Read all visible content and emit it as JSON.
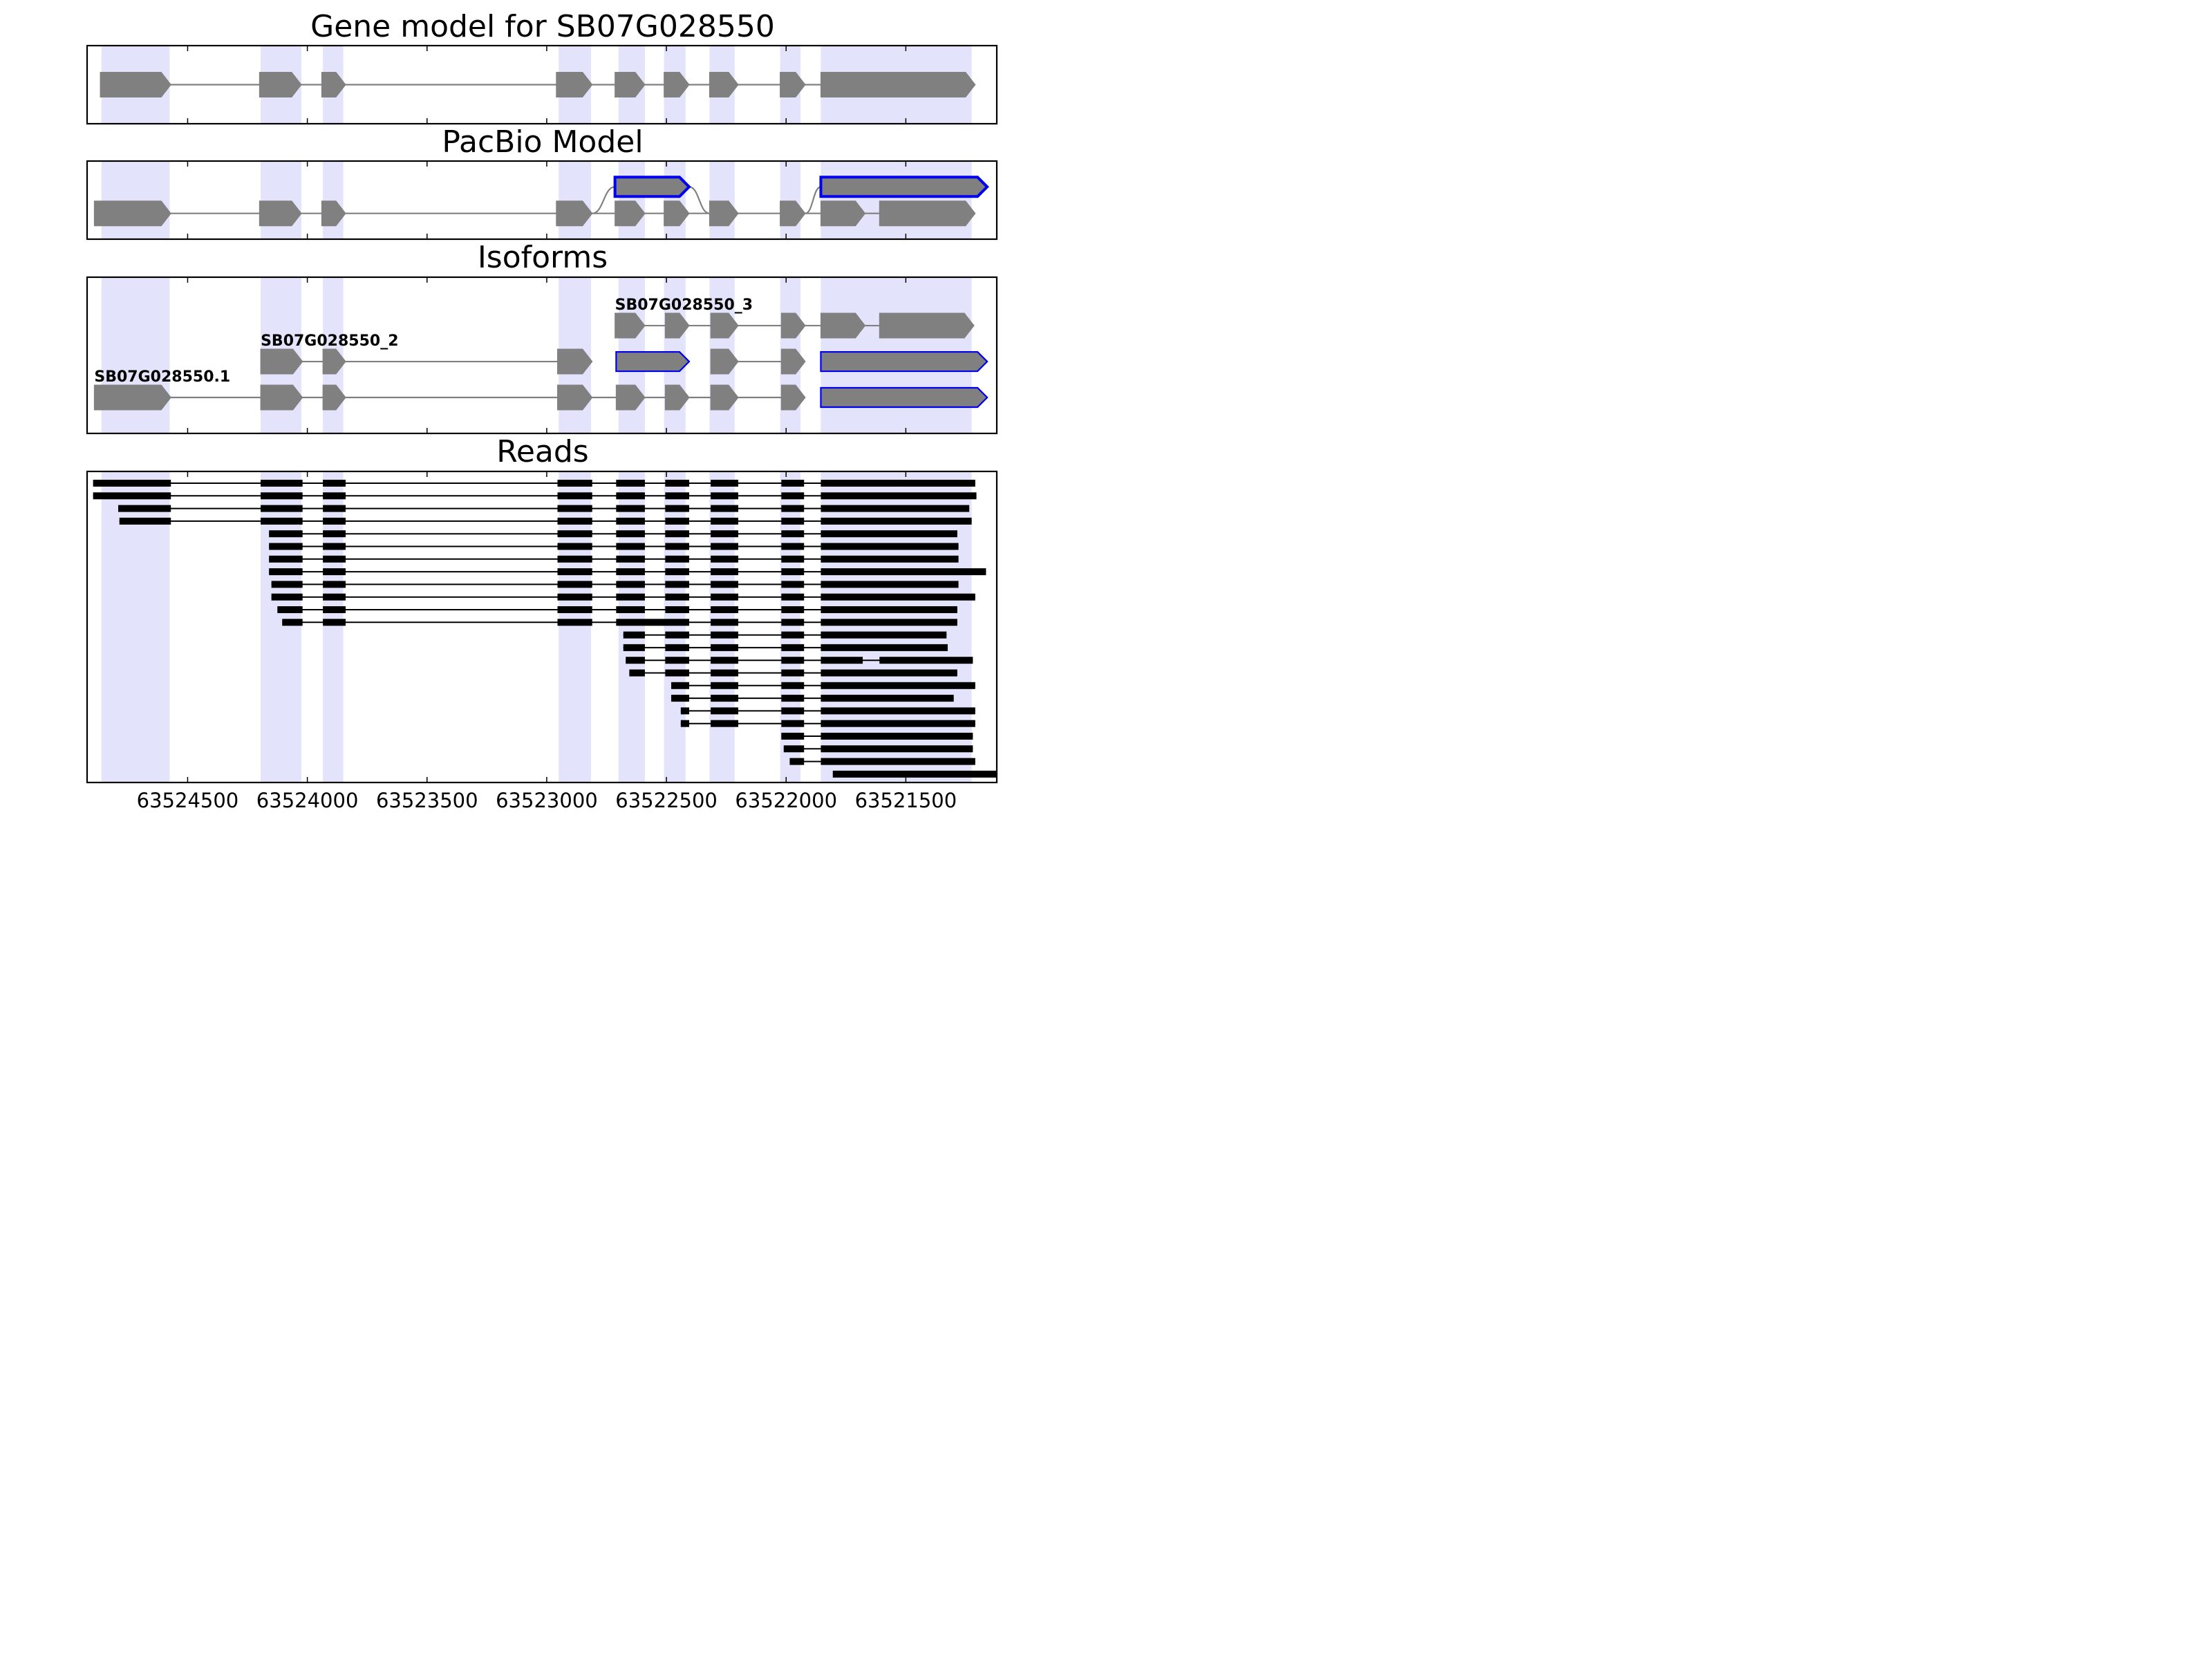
{
  "chart_data": {
    "type": "gene_model_tracks",
    "x_axis": {
      "reversed": true,
      "xlim": [
        63524920,
        63521120
      ],
      "ticks": [
        63524500,
        63524000,
        63523500,
        63523000,
        63522500,
        63522000,
        63521500
      ],
      "tick_labels": [
        "63524500",
        "63524000",
        "63523500",
        "63523000",
        "63522500",
        "63522000",
        "63521500"
      ]
    },
    "highlight_color": "#e3e3fb",
    "exon_color": "#808080",
    "outline_color": "#0000ee",
    "read_color": "#000000",
    "highlight_regions": [
      [
        63524860,
        63524575
      ],
      [
        63524195,
        63524025
      ],
      [
        63523935,
        63523850
      ],
      [
        63522950,
        63522815
      ],
      [
        63522700,
        63522590
      ],
      [
        63522510,
        63522420
      ],
      [
        63522320,
        63522215
      ],
      [
        63522025,
        63521940
      ],
      [
        63521855,
        63521225
      ]
    ],
    "panels": [
      {
        "title": "Gene model for SB07G028550",
        "kind": "gene_model",
        "tracks": [
          {
            "y": 0.5,
            "outlined": false,
            "exons": [
              [
                63524865,
                63524570
              ],
              [
                63524200,
                63524025
              ],
              [
                63523940,
                63523840
              ],
              [
                63522960,
                63522810
              ],
              [
                63522715,
                63522590
              ],
              [
                63522510,
                63522405
              ],
              [
                63522320,
                63522200
              ],
              [
                63522025,
                63521920
              ],
              [
                63521855,
                63521210
              ]
            ]
          }
        ]
      },
      {
        "title": "PacBio Model",
        "kind": "gene_model",
        "tracks": [
          {
            "y": 0.33,
            "outlined": false,
            "exons": [
              [
                63524890,
                63524570
              ],
              [
                63524200,
                63524025
              ],
              [
                63523940,
                63523840
              ],
              [
                63522960,
                63522810
              ],
              [
                63522715,
                63522590
              ],
              [
                63522510,
                63522405
              ],
              [
                63522320,
                63522200
              ],
              [
                63522025,
                63521920
              ],
              [
                63521855,
                63521670
              ],
              [
                63521610,
                63521210
              ]
            ]
          },
          {
            "y": 0.67,
            "outlined": true,
            "exons": [
              [
                63522715,
                63522405
              ]
            ],
            "branch_from": 63522810,
            "branch_to": 63522320
          },
          {
            "y": 0.67,
            "outlined": true,
            "exons": [
              [
                63521855,
                63521160
              ]
            ],
            "branch_from": 63521920
          }
        ]
      },
      {
        "title": "Isoforms",
        "kind": "gene_model",
        "tracks": [
          {
            "y": 0.23,
            "label": "SB07G028550.1",
            "outlined": false,
            "exons": [
              [
                63524890,
                63524570
              ],
              [
                63524195,
                63524020
              ],
              [
                63523935,
                63523840
              ],
              [
                63522955,
                63522810
              ],
              [
                63522710,
                63522590
              ],
              [
                63522505,
                63522405
              ],
              [
                63522315,
                63522200
              ],
              [
                63522020,
                63521920
              ]
            ]
          },
          {
            "y": 0.23,
            "outlined": true,
            "exons": [
              [
                63521855,
                63521160
              ]
            ]
          },
          {
            "y": 0.46,
            "label": "SB07G028550_2",
            "outlined": false,
            "exons": [
              [
                63524195,
                63524020
              ],
              [
                63523935,
                63523840
              ],
              [
                63522955,
                63522810
              ]
            ]
          },
          {
            "y": 0.46,
            "outlined": true,
            "exons": [
              [
                63522710,
                63522405
              ]
            ]
          },
          {
            "y": 0.46,
            "outlined": false,
            "exons": [
              [
                63522315,
                63522200
              ],
              [
                63522020,
                63521920
              ]
            ]
          },
          {
            "y": 0.46,
            "outlined": true,
            "exons": [
              [
                63521855,
                63521160
              ]
            ]
          },
          {
            "y": 0.69,
            "label": "SB07G028550_3",
            "outlined": false,
            "exons": [
              [
                63522715,
                63522590
              ],
              [
                63522505,
                63522405
              ],
              [
                63522315,
                63522200
              ],
              [
                63522020,
                63521920
              ],
              [
                63521855,
                63521670
              ],
              [
                63521610,
                63521215
              ]
            ]
          }
        ]
      },
      {
        "title": "Reads",
        "kind": "reads",
        "reads": [
          [
            [
              63524895,
              63524570
            ],
            [
              63524195,
              63524020
            ],
            [
              63523935,
              63523840
            ],
            [
              63522955,
              63522810
            ],
            [
              63522710,
              63522590
            ],
            [
              63522505,
              63522405
            ],
            [
              63522315,
              63522200
            ],
            [
              63522020,
              63521925
            ],
            [
              63521855,
              63521210
            ]
          ],
          [
            [
              63524895,
              63524570
            ],
            [
              63524195,
              63524020
            ],
            [
              63523935,
              63523840
            ],
            [
              63522955,
              63522810
            ],
            [
              63522710,
              63522590
            ],
            [
              63522505,
              63522405
            ],
            [
              63522315,
              63522200
            ],
            [
              63522020,
              63521925
            ],
            [
              63521855,
              63521205
            ]
          ],
          [
            [
              63524790,
              63524570
            ],
            [
              63524195,
              63524020
            ],
            [
              63523935,
              63523840
            ],
            [
              63522955,
              63522810
            ],
            [
              63522710,
              63522590
            ],
            [
              63522505,
              63522405
            ],
            [
              63522315,
              63522200
            ],
            [
              63522020,
              63521925
            ],
            [
              63521855,
              63521235
            ]
          ],
          [
            [
              63524785,
              63524570
            ],
            [
              63524195,
              63524020
            ],
            [
              63523935,
              63523840
            ],
            [
              63522955,
              63522810
            ],
            [
              63522710,
              63522590
            ],
            [
              63522505,
              63522405
            ],
            [
              63522315,
              63522200
            ],
            [
              63522020,
              63521925
            ],
            [
              63521855,
              63521225
            ]
          ],
          [
            [
              63524160,
              63524020
            ],
            [
              63523935,
              63523840
            ],
            [
              63522955,
              63522810
            ],
            [
              63522710,
              63522590
            ],
            [
              63522505,
              63522405
            ],
            [
              63522315,
              63522200
            ],
            [
              63522020,
              63521925
            ],
            [
              63521855,
              63521285
            ]
          ],
          [
            [
              63524160,
              63524020
            ],
            [
              63523935,
              63523840
            ],
            [
              63522955,
              63522810
            ],
            [
              63522710,
              63522590
            ],
            [
              63522505,
              63522405
            ],
            [
              63522315,
              63522200
            ],
            [
              63522020,
              63521925
            ],
            [
              63521855,
              63521280
            ]
          ],
          [
            [
              63524160,
              63524020
            ],
            [
              63523935,
              63523840
            ],
            [
              63522955,
              63522810
            ],
            [
              63522710,
              63522590
            ],
            [
              63522505,
              63522405
            ],
            [
              63522315,
              63522200
            ],
            [
              63522020,
              63521925
            ],
            [
              63521855,
              63521280
            ]
          ],
          [
            [
              63524160,
              63524020
            ],
            [
              63523935,
              63523840
            ],
            [
              63522955,
              63522810
            ],
            [
              63522710,
              63522590
            ],
            [
              63522505,
              63522405
            ],
            [
              63522315,
              63522200
            ],
            [
              63522020,
              63521925
            ],
            [
              63521855,
              63521165
            ]
          ],
          [
            [
              63524150,
              63524020
            ],
            [
              63523935,
              63523840
            ],
            [
              63522955,
              63522810
            ],
            [
              63522710,
              63522590
            ],
            [
              63522505,
              63522405
            ],
            [
              63522315,
              63522200
            ],
            [
              63522020,
              63521925
            ],
            [
              63521855,
              63521280
            ]
          ],
          [
            [
              63524150,
              63524020
            ],
            [
              63523935,
              63523840
            ],
            [
              63522955,
              63522810
            ],
            [
              63522710,
              63522590
            ],
            [
              63522505,
              63522405
            ],
            [
              63522315,
              63522200
            ],
            [
              63522020,
              63521925
            ],
            [
              63521855,
              63521210
            ]
          ],
          [
            [
              63524125,
              63524020
            ],
            [
              63523935,
              63523840
            ],
            [
              63522955,
              63522810
            ],
            [
              63522710,
              63522590
            ],
            [
              63522505,
              63522405
            ],
            [
              63522315,
              63522200
            ],
            [
              63522020,
              63521925
            ],
            [
              63521855,
              63521285
            ]
          ],
          [
            [
              63524105,
              63524020
            ],
            [
              63523935,
              63523840
            ],
            [
              63522955,
              63522810
            ],
            [
              63522710,
              63522405
            ],
            [
              63522315,
              63522200
            ],
            [
              63522020,
              63521925
            ],
            [
              63521855,
              63521285
            ]
          ],
          [
            [
              63522680,
              63522590
            ],
            [
              63522505,
              63522405
            ],
            [
              63522315,
              63522200
            ],
            [
              63522020,
              63521925
            ],
            [
              63521855,
              63521330
            ]
          ],
          [
            [
              63522680,
              63522590
            ],
            [
              63522505,
              63522405
            ],
            [
              63522315,
              63522200
            ],
            [
              63522020,
              63521925
            ],
            [
              63521855,
              63521325
            ]
          ],
          [
            [
              63522670,
              63522590
            ],
            [
              63522505,
              63522405
            ],
            [
              63522315,
              63522200
            ],
            [
              63522020,
              63521925
            ],
            [
              63521855,
              63521680
            ],
            [
              63521610,
              63521220
            ]
          ],
          [
            [
              63522655,
              63522590
            ],
            [
              63522505,
              63522405
            ],
            [
              63522315,
              63522200
            ],
            [
              63522020,
              63521925
            ],
            [
              63521855,
              63521285
            ]
          ],
          [
            [
              63522480,
              63522405
            ],
            [
              63522315,
              63522200
            ],
            [
              63522020,
              63521925
            ],
            [
              63521855,
              63521210
            ]
          ],
          [
            [
              63522480,
              63522405
            ],
            [
              63522315,
              63522200
            ],
            [
              63522020,
              63521925
            ],
            [
              63521855,
              63521300
            ]
          ],
          [
            [
              63522440,
              63522405
            ],
            [
              63522315,
              63522200
            ],
            [
              63522020,
              63521925
            ],
            [
              63521855,
              63521210
            ]
          ],
          [
            [
              63522440,
              63522405
            ],
            [
              63522315,
              63522200
            ],
            [
              63522020,
              63521925
            ],
            [
              63521855,
              63521210
            ]
          ],
          [
            [
              63522020,
              63521925
            ],
            [
              63521855,
              63521220
            ]
          ],
          [
            [
              63522010,
              63521925
            ],
            [
              63521855,
              63521220
            ]
          ],
          [
            [
              63521985,
              63521925
            ],
            [
              63521855,
              63521210
            ]
          ],
          [
            [
              63521805,
              63521120
            ]
          ]
        ]
      }
    ]
  }
}
